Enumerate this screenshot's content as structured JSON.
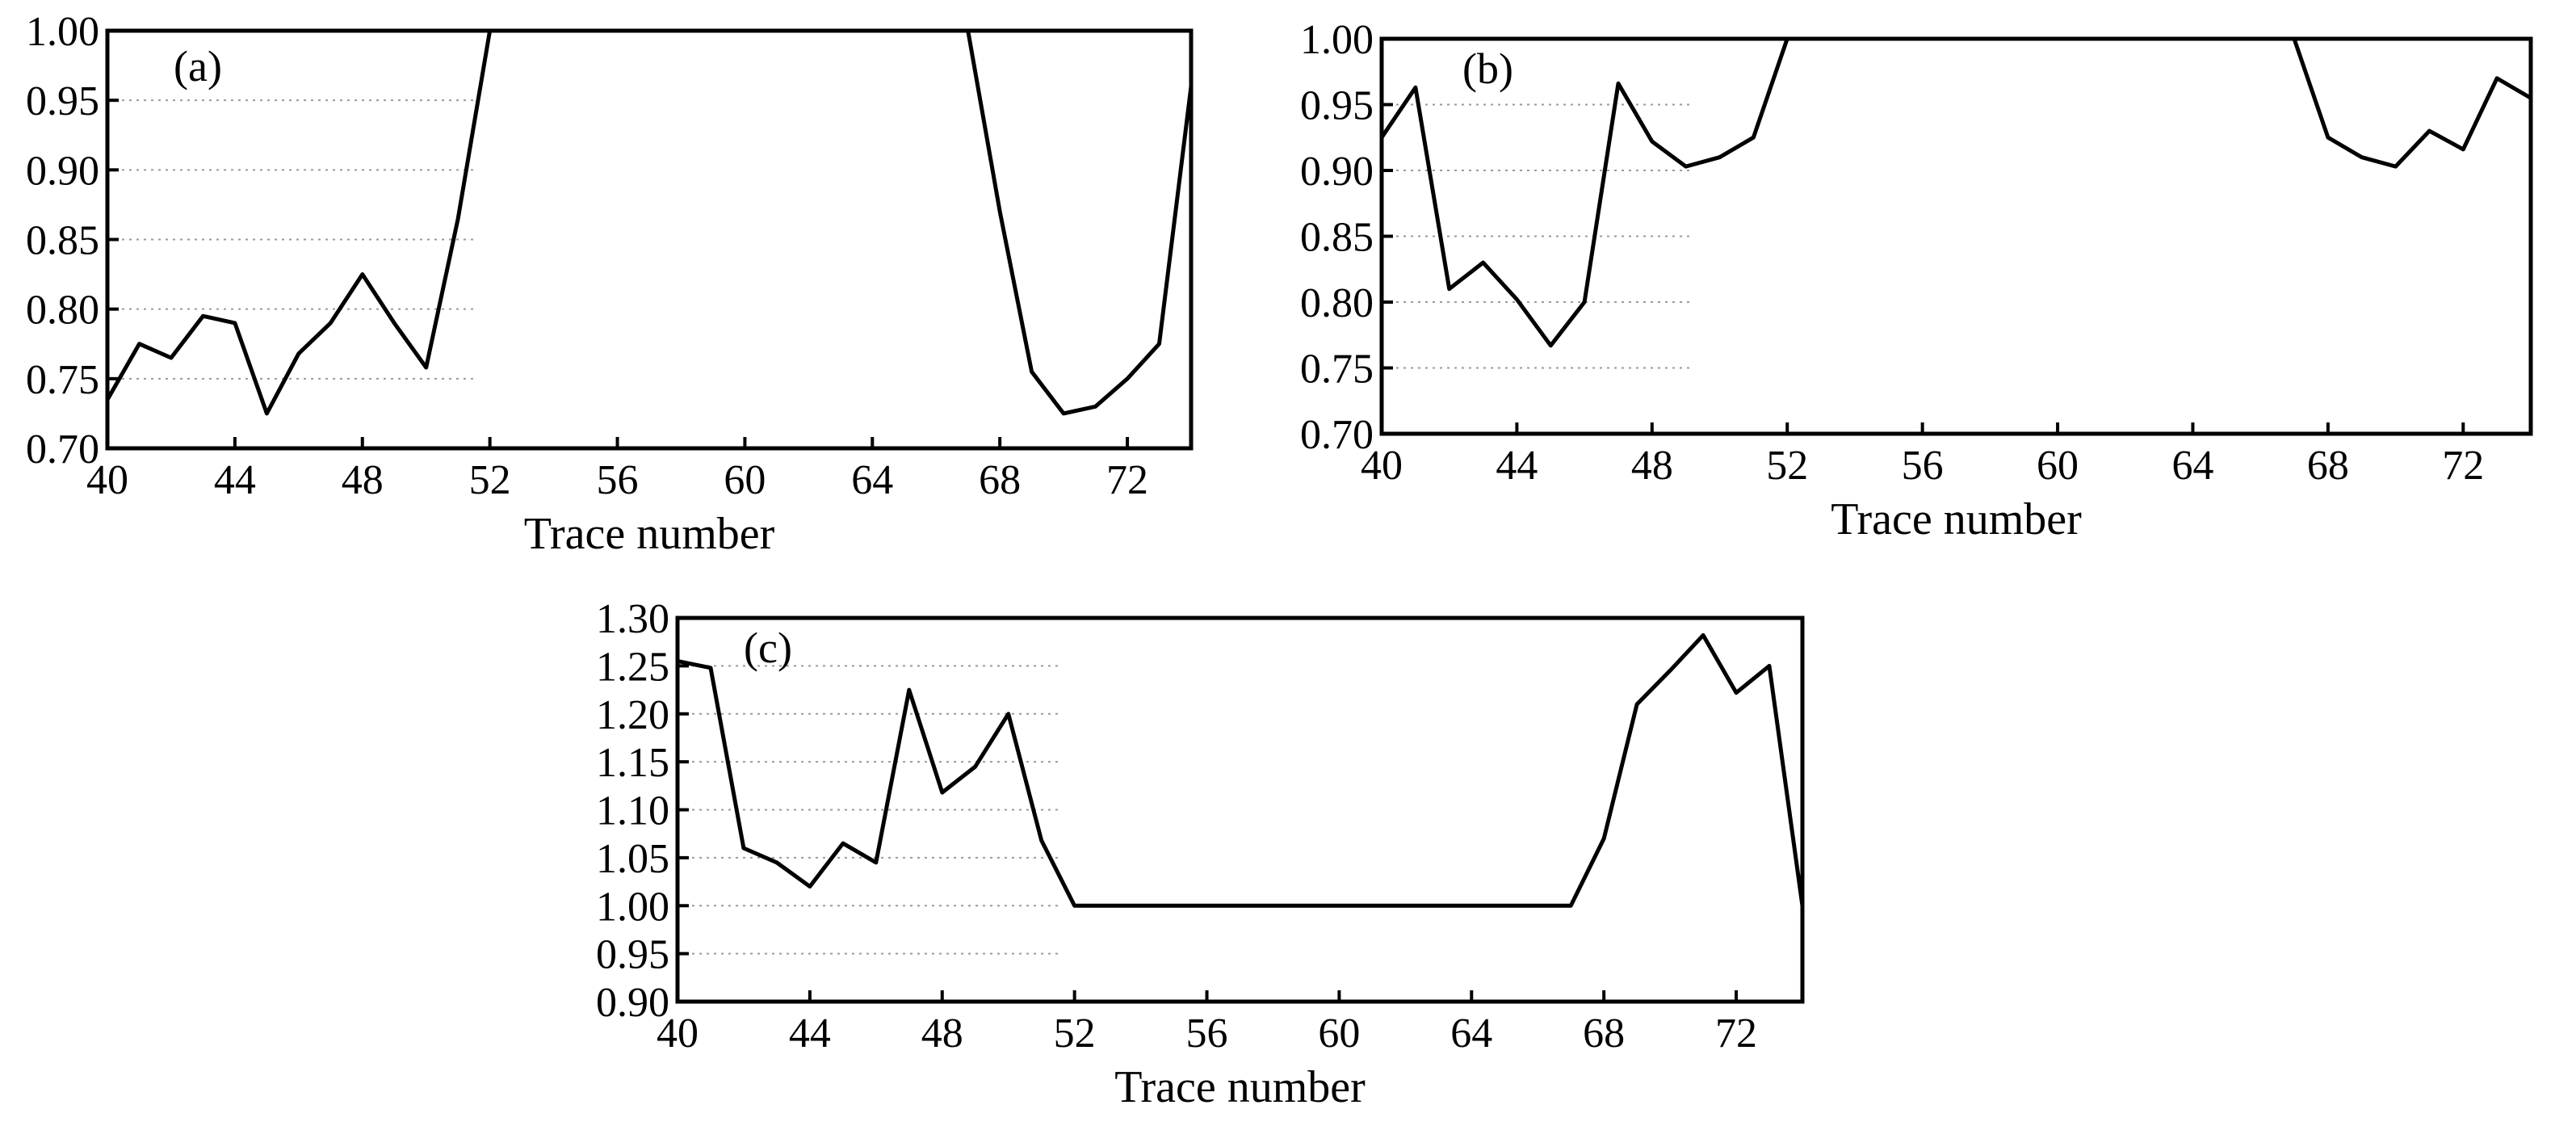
{
  "chart_data": [
    {
      "id": "a",
      "type": "line",
      "panel_label": "(a)",
      "xlabel": "Trace number",
      "ylabel": "",
      "xlim": [
        40,
        74
      ],
      "ylim": [
        0.7,
        1.0
      ],
      "xticks": [
        40,
        44,
        48,
        52,
        56,
        60,
        64,
        68,
        72
      ],
      "xtick_labels": [
        "40",
        "44",
        "48",
        "52",
        "56",
        "60",
        "64",
        "68",
        "72"
      ],
      "yticks": [
        0.7,
        0.75,
        0.8,
        0.85,
        0.9,
        0.95,
        1.0
      ],
      "ytick_labels": [
        "0.70",
        "0.75",
        "0.80",
        "0.85",
        "0.90",
        "0.95",
        "1.00"
      ],
      "grid": "y, dotted",
      "series": [
        {
          "x": [
            40,
            41,
            42,
            43,
            44,
            45,
            46,
            47,
            48,
            49,
            50,
            51,
            52,
            53,
            54,
            55,
            56,
            57,
            58,
            59,
            60,
            61,
            62,
            63,
            64,
            65,
            66,
            67,
            68,
            69,
            70,
            71,
            72,
            73,
            74
          ],
          "values": [
            0.735,
            0.775,
            0.765,
            0.795,
            0.79,
            0.725,
            0.768,
            0.79,
            0.825,
            0.79,
            0.758,
            0.865,
            1.0,
            1.0,
            1.0,
            1.0,
            1.0,
            1.0,
            1.0,
            1.0,
            1.0,
            1.0,
            1.0,
            1.0,
            1.0,
            1.0,
            1.0,
            1.0,
            0.87,
            0.755,
            0.725,
            0.73,
            0.75,
            0.775,
            0.96
          ]
        }
      ]
    },
    {
      "id": "b",
      "type": "line",
      "panel_label": "(b)",
      "xlabel": "Trace number",
      "ylabel": "",
      "xlim": [
        40,
        74
      ],
      "ylim": [
        0.7,
        1.0
      ],
      "xticks": [
        40,
        44,
        48,
        52,
        56,
        60,
        64,
        68,
        72
      ],
      "xtick_labels": [
        "40",
        "44",
        "48",
        "52",
        "56",
        "60",
        "64",
        "68",
        "72"
      ],
      "yticks": [
        0.7,
        0.75,
        0.8,
        0.85,
        0.9,
        0.95,
        1.0
      ],
      "ytick_labels": [
        "0.70",
        "0.75",
        "0.80",
        "0.85",
        "0.90",
        "0.95",
        "1.00"
      ],
      "grid": "y, dotted",
      "series": [
        {
          "x": [
            40,
            41,
            42,
            43,
            44,
            45,
            46,
            47,
            48,
            49,
            50,
            51,
            52,
            53,
            54,
            55,
            56,
            57,
            58,
            59,
            60,
            61,
            62,
            63,
            64,
            65,
            66,
            67,
            68,
            69,
            70,
            71,
            72,
            73,
            74
          ],
          "values": [
            0.925,
            0.963,
            0.81,
            0.83,
            0.802,
            0.767,
            0.8,
            0.966,
            0.922,
            0.903,
            0.91,
            0.925,
            1.0,
            1.0,
            1.0,
            1.0,
            1.0,
            1.0,
            1.0,
            1.0,
            1.0,
            1.0,
            1.0,
            1.0,
            1.0,
            1.0,
            1.0,
            1.0,
            0.925,
            0.91,
            0.903,
            0.93,
            0.916,
            0.97,
            0.955
          ]
        }
      ]
    },
    {
      "id": "c",
      "type": "line",
      "panel_label": "(c)",
      "xlabel": "Trace number",
      "ylabel": "",
      "xlim": [
        40,
        74
      ],
      "ylim": [
        0.9,
        1.3
      ],
      "xticks": [
        40,
        44,
        48,
        52,
        56,
        60,
        64,
        68,
        72
      ],
      "xtick_labels": [
        "40",
        "44",
        "48",
        "52",
        "56",
        "60",
        "64",
        "68",
        "72"
      ],
      "yticks": [
        0.9,
        0.95,
        1.0,
        1.05,
        1.1,
        1.15,
        1.2,
        1.25,
        1.3
      ],
      "ytick_labels": [
        "0.90",
        "0.95",
        "1.00",
        "1.05",
        "1.10",
        "1.15",
        "1.20",
        "1.25",
        "1.30"
      ],
      "grid": "y, dotted",
      "series": [
        {
          "x": [
            40,
            41,
            42,
            43,
            44,
            45,
            46,
            47,
            48,
            49,
            50,
            51,
            52,
            53,
            54,
            55,
            56,
            57,
            58,
            59,
            60,
            61,
            62,
            63,
            64,
            65,
            66,
            67,
            68,
            69,
            70,
            71,
            72,
            73,
            74
          ],
          "values": [
            1.255,
            1.248,
            1.06,
            1.045,
            1.02,
            1.065,
            1.045,
            1.225,
            1.118,
            1.145,
            1.2,
            1.068,
            1.0,
            1.0,
            1.0,
            1.0,
            1.0,
            1.0,
            1.0,
            1.0,
            1.0,
            1.0,
            1.0,
            1.0,
            1.0,
            1.0,
            1.0,
            1.0,
            1.07,
            1.21,
            1.245,
            1.282,
            1.222,
            1.25,
            1.0
          ]
        }
      ]
    }
  ]
}
